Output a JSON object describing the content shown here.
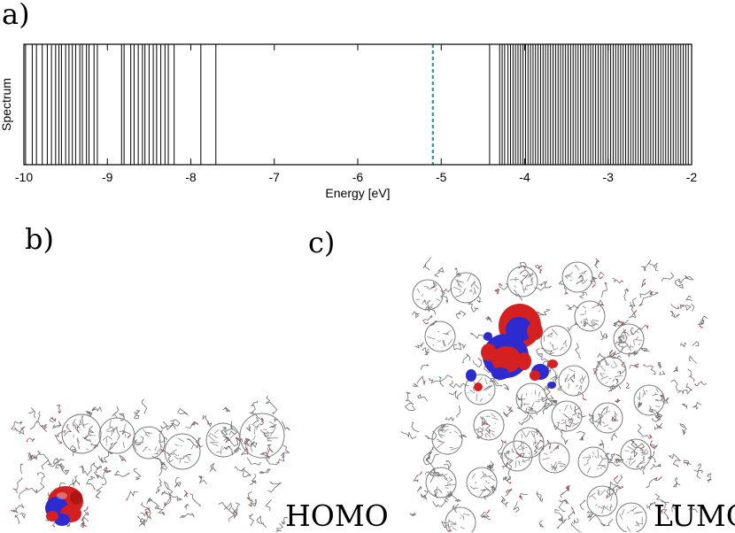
{
  "figure": {
    "panel_a_label": "a)",
    "panel_b_label": "b)",
    "panel_c_label": "c)",
    "homo_label": "HOMO",
    "lumo_label": "LUMO"
  },
  "colors": {
    "lines": "#000000",
    "homo_marker": "#2a9aa0",
    "orbital_positive": "#d42020",
    "orbital_negative": "#2b2bd0",
    "molecule": "#7a7a7a",
    "oxygen": "#d83030"
  },
  "chart_data": {
    "type": "spectrum",
    "title": "",
    "xlabel": "Energy [eV]",
    "ylabel": "Spectrum",
    "xlim": [
      -10,
      -2
    ],
    "x_ticks": [
      -10,
      -9,
      -8,
      -7,
      -6,
      -5,
      -4,
      -3,
      -2
    ],
    "x_tick_labels": [
      "-10",
      "-9",
      "-8",
      "-7",
      "-6",
      "-5",
      "-4",
      "-3",
      "-2"
    ],
    "homo_level": -5.1,
    "occupied_levels": [
      -9.98,
      -9.9,
      -9.85,
      -9.78,
      -9.72,
      -9.67,
      -9.62,
      -9.58,
      -9.55,
      -9.5,
      -9.46,
      -9.42,
      -9.38,
      -9.33,
      -9.3,
      -9.25,
      -9.22,
      -9.16,
      -9.12,
      -8.83,
      -8.8,
      -8.72,
      -8.68,
      -8.63,
      -8.58,
      -8.55,
      -8.5,
      -8.45,
      -8.41,
      -8.36,
      -8.31,
      -8.27,
      -8.2,
      -7.88,
      -7.7
    ],
    "unoccupied_levels": [
      -4.42,
      -4.3,
      -4.27,
      -4.24,
      -4.2,
      -4.17,
      -4.14,
      -4.11,
      -4.08,
      -4.05,
      -4.02,
      -3.99,
      -3.96,
      -3.93,
      -3.9,
      -3.87,
      -3.84,
      -3.81,
      -3.78,
      -3.75,
      -3.72,
      -3.69,
      -3.66,
      -3.63,
      -3.6,
      -3.57,
      -3.54,
      -3.51,
      -3.48,
      -3.45,
      -3.42,
      -3.39,
      -3.36,
      -3.33,
      -3.3,
      -3.27,
      -3.24,
      -3.21,
      -3.18,
      -3.15,
      -3.12,
      -3.09,
      -3.06,
      -3.03,
      -3.0,
      -2.97,
      -2.94,
      -2.91,
      -2.88,
      -2.85,
      -2.82,
      -2.79,
      -2.76,
      -2.73,
      -2.7,
      -2.67,
      -2.64,
      -2.61,
      -2.58,
      -2.55,
      -2.52,
      -2.49,
      -2.46,
      -2.43,
      -2.4,
      -2.37,
      -2.34,
      -2.31,
      -2.28,
      -2.25,
      -2.22,
      -2.19,
      -2.16,
      -2.13,
      -2.1,
      -2.07,
      -2.04
    ]
  }
}
